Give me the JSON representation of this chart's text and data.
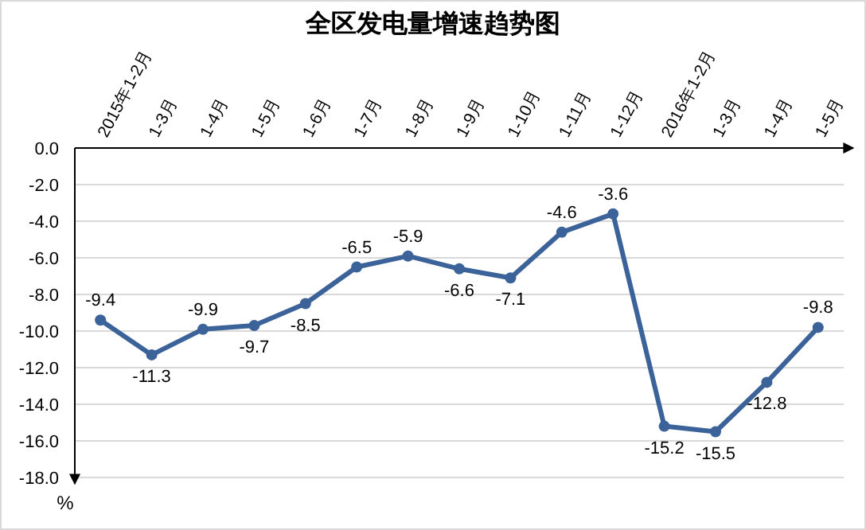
{
  "chart_data": {
    "type": "line",
    "title": "全区发电量增速趋势图",
    "ylabel": "%",
    "categories": [
      "2015年1-2月",
      "1-3月",
      "1-4月",
      "1-5月",
      "1-6月",
      "1-7月",
      "1-8月",
      "1-9月",
      "1-10月",
      "1-11月",
      "1-12月",
      "2016年1-2月",
      "1-3月",
      "1-4月",
      "1-5月"
    ],
    "series": [
      {
        "color": "#3b6299",
        "values": [
          -9.4,
          -11.3,
          -9.9,
          -9.7,
          -8.5,
          -6.5,
          -5.9,
          -6.6,
          -7.1,
          -4.6,
          -3.6,
          -15.2,
          -15.5,
          -12.8,
          -9.8
        ]
      }
    ],
    "ylim": [
      -18,
      0
    ],
    "yticks": [
      {
        "value": 0,
        "label": "0.0"
      },
      {
        "value": -2,
        "label": "-2.0"
      },
      {
        "value": -4,
        "label": "-4.0"
      },
      {
        "value": -6,
        "label": "-6.0"
      },
      {
        "value": -8,
        "label": "-8.0"
      },
      {
        "value": -10,
        "label": "-10.0"
      },
      {
        "value": -12,
        "label": "-12.0"
      },
      {
        "value": -14,
        "label": "-14.0"
      },
      {
        "value": -16,
        "label": "-16.0"
      },
      {
        "value": -18,
        "label": "-18.0"
      }
    ],
    "grid": "y",
    "marker": "circle",
    "line_style": "solid",
    "data_labels": true
  }
}
